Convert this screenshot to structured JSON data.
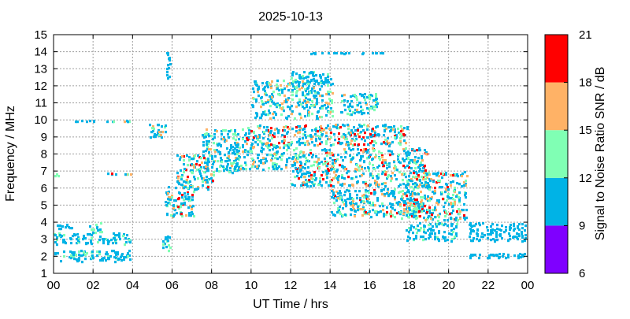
{
  "chart_data": {
    "type": "heatmap",
    "title": "2025-10-13",
    "xlabel": "UT Time / hrs",
    "ylabel": "Frequency / MHz",
    "xlim": [
      0,
      24
    ],
    "ylim": [
      1,
      15
    ],
    "xticks": [
      "00",
      "02",
      "04",
      "06",
      "08",
      "10",
      "12",
      "14",
      "16",
      "18",
      "20",
      "22",
      "00"
    ],
    "yticks": [
      "1",
      "2",
      "3",
      "4",
      "5",
      "6",
      "7",
      "8",
      "9",
      "10",
      "11",
      "12",
      "13",
      "14",
      "15"
    ],
    "grid": true,
    "colorbar": {
      "label": "Signal to Noise Ratio SNR / dB",
      "ticks": [
        "6",
        "9",
        "12",
        "15",
        "18",
        "21"
      ],
      "bins": [
        {
          "from": 6,
          "to": 9,
          "color": "#7f00ff"
        },
        {
          "from": 9,
          "to": 12,
          "color": "#00b3e6"
        },
        {
          "from": 12,
          "to": 15,
          "color": "#80ffb4"
        },
        {
          "from": 15,
          "to": 18,
          "color": "#ffb266"
        },
        {
          "from": 18,
          "to": 21,
          "color": "#ff0000"
        }
      ]
    },
    "regions": [
      {
        "t0": 0.0,
        "t1": 0.3,
        "f0": 6.6,
        "f1": 6.9,
        "snr": [
          10,
          19
        ]
      },
      {
        "t0": 0.0,
        "t1": 4.0,
        "f0": 1.6,
        "f1": 2.4,
        "snr": [
          9,
          14
        ]
      },
      {
        "t0": 0.0,
        "t1": 4.0,
        "f0": 2.6,
        "f1": 3.4,
        "snr": [
          9,
          14
        ]
      },
      {
        "t0": 0.0,
        "t1": 1.0,
        "f0": 3.5,
        "f1": 3.9,
        "snr": [
          9,
          12
        ]
      },
      {
        "t0": 1.8,
        "t1": 2.5,
        "f0": 3.3,
        "f1": 4.0,
        "snr": [
          9,
          15
        ]
      },
      {
        "t0": 1.0,
        "t1": 2.2,
        "f0": 9.8,
        "f1": 10.0,
        "snr": [
          9,
          12
        ]
      },
      {
        "t0": 2.5,
        "t1": 4.0,
        "f0": 9.8,
        "f1": 10.0,
        "snr": [
          9,
          16
        ]
      },
      {
        "t0": 2.6,
        "t1": 4.1,
        "f0": 6.7,
        "f1": 6.9,
        "snr": [
          9,
          19
        ]
      },
      {
        "t0": 4.8,
        "t1": 5.8,
        "f0": 8.8,
        "f1": 9.8,
        "snr": [
          9,
          19
        ]
      },
      {
        "t0": 5.7,
        "t1": 6.0,
        "f0": 12.2,
        "f1": 14.0,
        "snr": [
          9,
          12
        ]
      },
      {
        "t0": 5.5,
        "t1": 6.0,
        "f0": 2.2,
        "f1": 3.4,
        "snr": [
          9,
          14
        ]
      },
      {
        "t0": 5.6,
        "t1": 7.2,
        "f0": 4.2,
        "f1": 6.2,
        "snr": [
          9,
          20
        ]
      },
      {
        "t0": 6.2,
        "t1": 8.2,
        "f0": 5.8,
        "f1": 8.0,
        "snr": [
          9,
          20
        ]
      },
      {
        "t0": 7.5,
        "t1": 9.5,
        "f0": 6.8,
        "f1": 9.5,
        "snr": [
          9,
          17
        ]
      },
      {
        "t0": 9.0,
        "t1": 12.0,
        "f0": 7.0,
        "f1": 8.6,
        "snr": [
          9,
          16
        ]
      },
      {
        "t0": 9.5,
        "t1": 18.0,
        "f0": 8.4,
        "f1": 9.8,
        "snr": [
          9,
          21
        ]
      },
      {
        "t0": 10.0,
        "t1": 14.2,
        "f0": 10.0,
        "f1": 12.4,
        "snr": [
          9,
          17
        ]
      },
      {
        "t0": 12.0,
        "t1": 14.2,
        "f0": 12.0,
        "f1": 12.9,
        "snr": [
          9,
          15
        ]
      },
      {
        "t0": 14.5,
        "t1": 16.5,
        "f0": 10.2,
        "f1": 11.6,
        "snr": [
          9,
          16
        ]
      },
      {
        "t0": 13.0,
        "t1": 17.0,
        "f0": 13.8,
        "f1": 14.0,
        "snr": [
          9,
          12
        ]
      },
      {
        "t0": 12.0,
        "t1": 19.0,
        "f0": 6.0,
        "f1": 8.4,
        "snr": [
          9,
          20
        ]
      },
      {
        "t0": 14.0,
        "t1": 18.8,
        "f0": 4.2,
        "f1": 6.0,
        "snr": [
          9,
          19
        ]
      },
      {
        "t0": 17.5,
        "t1": 21.0,
        "f0": 4.0,
        "f1": 7.0,
        "snr": [
          9,
          20
        ]
      },
      {
        "t0": 20.0,
        "t1": 21.0,
        "f0": 6.6,
        "f1": 6.9,
        "snr": [
          9,
          19
        ]
      },
      {
        "t0": 17.8,
        "t1": 20.5,
        "f0": 2.8,
        "f1": 4.0,
        "snr": [
          9,
          14
        ]
      },
      {
        "t0": 21.0,
        "t1": 24.0,
        "f0": 2.8,
        "f1": 4.0,
        "snr": [
          9,
          12
        ]
      },
      {
        "t0": 21.0,
        "t1": 24.0,
        "f0": 1.8,
        "f1": 2.2,
        "snr": [
          9,
          12
        ]
      }
    ]
  }
}
